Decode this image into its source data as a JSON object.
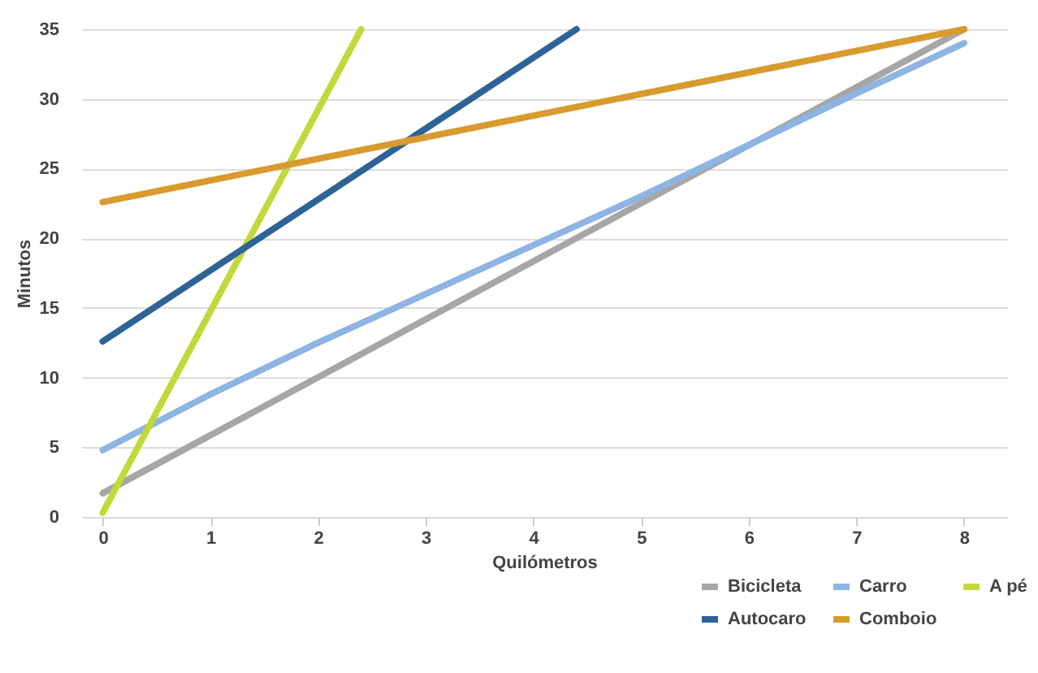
{
  "chart_data": {
    "type": "line",
    "xlabel": "Quilómetros",
    "ylabel": "Minutos",
    "xlim": [
      -0.2,
      8.4
    ],
    "xticks": [
      0,
      1,
      2,
      3,
      4,
      5,
      6,
      7,
      8
    ],
    "ylim": [
      0,
      35
    ],
    "yticks": [
      0,
      5,
      10,
      15,
      20,
      25,
      30,
      35
    ],
    "grid": "y",
    "legend": "bottom right",
    "marker": "none",
    "series": [
      {
        "name": "Bicicleta",
        "color": "#a6a6a6",
        "x": [
          0,
          8
        ],
        "values": [
          1.7,
          35
        ]
      },
      {
        "name": "Carro",
        "color": "#8db4e2",
        "x": [
          0,
          1,
          2,
          3,
          4,
          5,
          6,
          7,
          8
        ],
        "values": [
          4.8,
          8.8,
          12.5,
          16,
          19.5,
          23,
          26.7,
          30.4,
          34
        ]
      },
      {
        "name": "A pé",
        "color": "#c3d83b",
        "x": [
          0,
          2.4
        ],
        "values": [
          0.3,
          35
        ]
      },
      {
        "name": "Autocaro",
        "color": "#2e6396",
        "x": [
          0,
          4.4
        ],
        "values": [
          12.6,
          35
        ]
      },
      {
        "name": "Comboio",
        "color": "#d99a2e",
        "x": [
          0,
          8
        ],
        "values": [
          22.6,
          35
        ]
      }
    ]
  }
}
